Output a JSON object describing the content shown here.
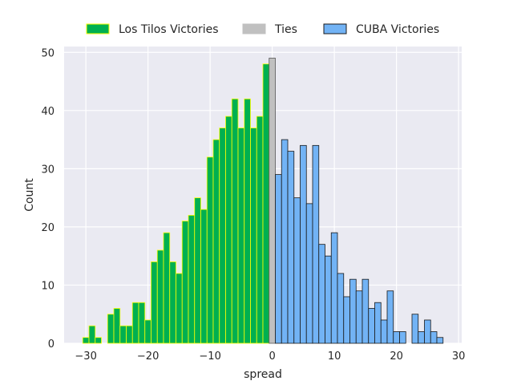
{
  "chart_data": {
    "type": "bar",
    "xlabel": "spread",
    "ylabel": "Count",
    "xlim": [
      -33.5,
      30.5
    ],
    "ylim": [
      0,
      51
    ],
    "xticks": [
      -30,
      -20,
      -10,
      0,
      10,
      20,
      30
    ],
    "yticks": [
      0,
      10,
      20,
      30,
      40,
      50
    ],
    "grid": true,
    "legend_position": "top-center",
    "colors": {
      "plot_bg": "#eaeaf2",
      "grid": "#ffffff",
      "los_tilos_fill": "#00b050",
      "los_tilos_edge": "#ffff00",
      "ties_fill": "#c0c0c0",
      "ties_edge": "#555555",
      "cuba_fill": "#72b3f5",
      "cuba_edge": "#1a1a1a"
    },
    "series": [
      {
        "name": "Los Tilos Victories",
        "x": [
          -30,
          -29,
          -28,
          -27,
          -26,
          -25,
          -24,
          -23,
          -22,
          -21,
          -20,
          -19,
          -18,
          -17,
          -16,
          -15,
          -14,
          -13,
          -12,
          -11,
          -10,
          -9,
          -8,
          -7,
          -6,
          -5,
          -4,
          -3,
          -2,
          -1
        ],
        "values": [
          1,
          3,
          1,
          0,
          5,
          6,
          3,
          3,
          7,
          7,
          4,
          14,
          16,
          19,
          14,
          12,
          21,
          22,
          25,
          23,
          32,
          35,
          37,
          39,
          42,
          37,
          42,
          37,
          39,
          48
        ]
      },
      {
        "name": "Ties",
        "x": [
          0
        ],
        "values": [
          49
        ]
      },
      {
        "name": "CUBA Victories",
        "x": [
          1,
          2,
          3,
          4,
          5,
          6,
          7,
          8,
          9,
          10,
          11,
          12,
          13,
          14,
          15,
          16,
          17,
          18,
          19,
          20,
          21,
          22,
          23,
          24,
          25,
          26,
          27
        ],
        "values": [
          29,
          35,
          33,
          25,
          34,
          24,
          34,
          17,
          15,
          19,
          12,
          8,
          11,
          9,
          11,
          6,
          7,
          4,
          9,
          2,
          2,
          0,
          5,
          2,
          4,
          2,
          1
        ]
      }
    ]
  }
}
